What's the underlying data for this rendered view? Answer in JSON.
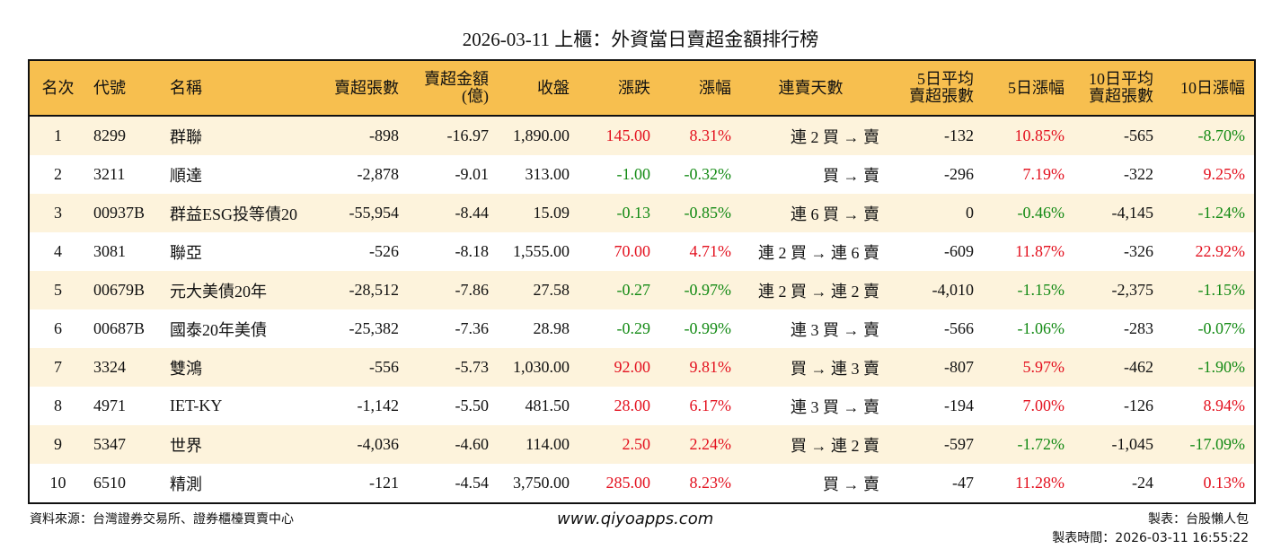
{
  "title": "2026-03-11 上櫃：外資當日賣超金額排行榜",
  "colors": {
    "header_bg": "#f7bf4f",
    "odd_row_bg": "#fdf3dc",
    "up": "#e3101e",
    "down": "#138a14"
  },
  "columns": [
    "名次",
    "代號",
    "名稱",
    "賣超張數",
    "賣超金額\n(億)",
    "收盤",
    "漲跌",
    "漲幅",
    "連賣天數",
    "5日平均\n賣超張數",
    "5日漲幅",
    "10日平均\n賣超張數",
    "10日漲幅"
  ],
  "rows": [
    [
      "1",
      "8299",
      "群聯",
      "-898",
      "-16.97",
      "1,890.00",
      "145.00",
      "8.31%",
      "連 2 買 → 賣",
      "-132",
      "10.85%",
      "-565",
      "-8.70%"
    ],
    [
      "2",
      "3211",
      "順達",
      "-2,878",
      "-9.01",
      "313.00",
      "-1.00",
      "-0.32%",
      "買 → 賣",
      "-296",
      "7.19%",
      "-322",
      "9.25%"
    ],
    [
      "3",
      "00937B",
      "群益ESG投等債20",
      "-55,954",
      "-8.44",
      "15.09",
      "-0.13",
      "-0.85%",
      "連 6 買 → 賣",
      "0",
      "-0.46%",
      "-4,145",
      "-1.24%"
    ],
    [
      "4",
      "3081",
      "聯亞",
      "-526",
      "-8.18",
      "1,555.00",
      "70.00",
      "4.71%",
      "連 2 買 → 連 6 賣",
      "-609",
      "11.87%",
      "-326",
      "22.92%"
    ],
    [
      "5",
      "00679B",
      "元大美債20年",
      "-28,512",
      "-7.86",
      "27.58",
      "-0.27",
      "-0.97%",
      "連 2 買 → 連 2 賣",
      "-4,010",
      "-1.15%",
      "-2,375",
      "-1.15%"
    ],
    [
      "6",
      "00687B",
      "國泰20年美債",
      "-25,382",
      "-7.36",
      "28.98",
      "-0.29",
      "-0.99%",
      "連 3 買 → 賣",
      "-566",
      "-1.06%",
      "-283",
      "-0.07%"
    ],
    [
      "7",
      "3324",
      "雙鴻",
      "-556",
      "-5.73",
      "1,030.00",
      "92.00",
      "9.81%",
      "買 → 連 3 賣",
      "-807",
      "5.97%",
      "-462",
      "-1.90%"
    ],
    [
      "8",
      "4971",
      "IET-KY",
      "-1,142",
      "-5.50",
      "481.50",
      "28.00",
      "6.17%",
      "連 3 買 → 賣",
      "-194",
      "7.00%",
      "-126",
      "8.94%"
    ],
    [
      "9",
      "5347",
      "世界",
      "-4,036",
      "-4.60",
      "114.00",
      "2.50",
      "2.24%",
      "買 → 連 2 賣",
      "-597",
      "-1.72%",
      "-1,045",
      "-17.09%"
    ],
    [
      "10",
      "6510",
      "精測",
      "-121",
      "-4.54",
      "3,750.00",
      "285.00",
      "8.23%",
      "買 → 賣",
      "-47",
      "11.28%",
      "-24",
      "0.13%"
    ]
  ],
  "footer": {
    "source": "資料來源：台灣證券交易所、證券櫃檯買賣中心",
    "website": "www.qiyoapps.com",
    "author": "製表：台股懶人包",
    "timestamp": "製表時間：2026-03-11 16:55:22"
  }
}
